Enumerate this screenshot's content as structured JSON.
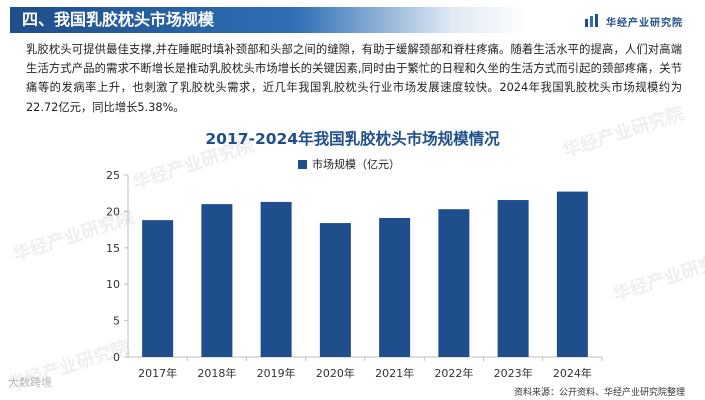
{
  "header": {
    "title": "四、我国乳胶枕头市场规模",
    "brand": "华经产业研究院"
  },
  "paragraph": "乳胶枕头可提供最佳支撑,并在睡眠时填补颈部和头部之间的缝隙，有助于缓解颈部和脊柱疼痛。随着生活水平的提高，人们对高端生活方式产品的需求不断增长是推动乳胶枕头市场增长的关键因素,同时由于繁忙的日程和久坐的生活方式而引起的颈部疼痛，关节痛等的发病率上升，也刺激了乳胶枕头需求，近几年我国乳胶枕头行业市场发展速度较快。2024年我国乳胶枕头市场规模约为22.72亿元，同比增长5.38%。",
  "watermark": "华经产业研究院",
  "corner_text": "大数跨境",
  "source": "资料来源：公开资料、华经产业研究院整理",
  "colors": {
    "bar": "#1f4e8c",
    "title": "#1f4e8c",
    "axis": "#bfbfbf"
  },
  "chart_data": {
    "type": "bar",
    "title": "2017-2024年我国乳胶枕头市场规模情况",
    "categories": [
      "2017年",
      "2018年",
      "2019年",
      "2020年",
      "2021年",
      "2022年",
      "2023年",
      "2024年"
    ],
    "series": [
      {
        "name": "市场规模（亿元）",
        "values": [
          18.8,
          21.0,
          21.3,
          18.4,
          19.1,
          20.3,
          21.56,
          22.72
        ]
      }
    ],
    "y_ticks": [
      0,
      5,
      10,
      15,
      20,
      25
    ],
    "ylim": [
      0,
      25
    ],
    "legend_position": "top-center",
    "grid": false
  }
}
